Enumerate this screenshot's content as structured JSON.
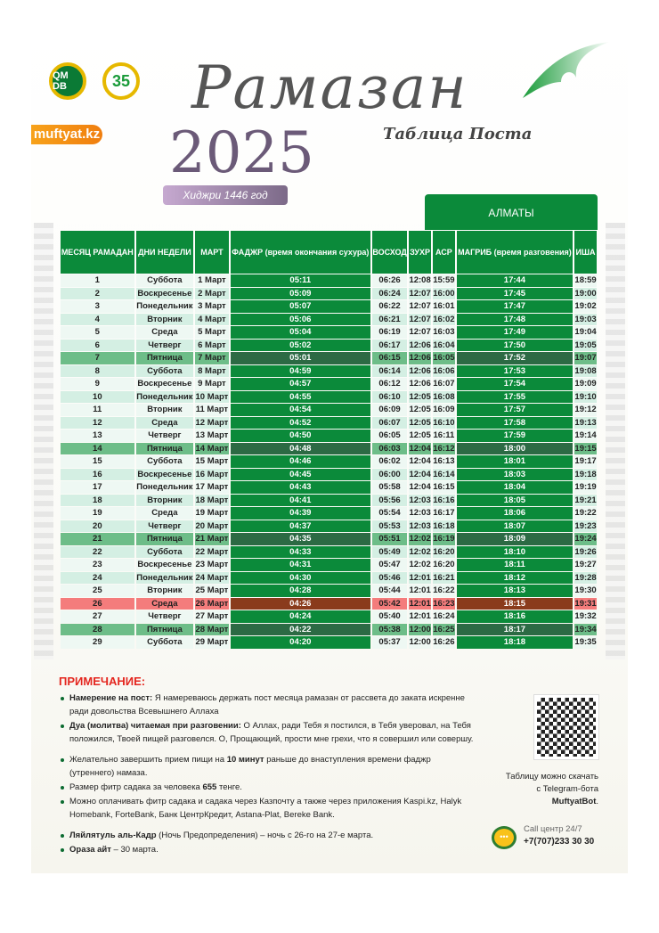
{
  "header": {
    "logo1_text": "QM DB",
    "logo2_text": "35",
    "site": "muftyat.kz",
    "title": "Рамазан",
    "year": "2025",
    "subtitle": "Таблица Поста",
    "hijri": "Хиджри 1446 год",
    "city": "АЛМАТЫ"
  },
  "colors": {
    "green": "#0b8a3a",
    "friday_row": "#6dbd88",
    "special_row": "#f47c7c",
    "note_title": "#e4261f",
    "site_orange": "#f7a21b"
  },
  "table": {
    "columns": [
      "МЕСЯЦ РАМАДАН",
      "ДНИ НЕДЕЛИ",
      "МАРТ",
      "ФАДЖР (время окончания сухура)",
      "ВОСХОД",
      "ЗУХР",
      "АСР",
      "МАГРИБ (время разговения)",
      "ИША"
    ],
    "rows": [
      [
        "1",
        "Суббота",
        "1 Март",
        "05:11",
        "06:26",
        "12:08",
        "15:59",
        "17:44",
        "18:59"
      ],
      [
        "2",
        "Воскресенье",
        "2 Март",
        "05:09",
        "06:24",
        "12:07",
        "16:00",
        "17:45",
        "19:00"
      ],
      [
        "3",
        "Понедельник",
        "3 Март",
        "05:07",
        "06:22",
        "12:07",
        "16:01",
        "17:47",
        "19:02"
      ],
      [
        "4",
        "Вторник",
        "4 Март",
        "05:06",
        "06:21",
        "12:07",
        "16:02",
        "17:48",
        "19:03"
      ],
      [
        "5",
        "Среда",
        "5 Март",
        "05:04",
        "06:19",
        "12:07",
        "16:03",
        "17:49",
        "19:04"
      ],
      [
        "6",
        "Четверг",
        "6 Март",
        "05:02",
        "06:17",
        "12:06",
        "16:04",
        "17:50",
        "19:05"
      ],
      [
        "7",
        "Пятница",
        "7 Март",
        "05:01",
        "06:15",
        "12:06",
        "16:05",
        "17:52",
        "19:07"
      ],
      [
        "8",
        "Суббота",
        "8 Март",
        "04:59",
        "06:14",
        "12:06",
        "16:06",
        "17:53",
        "19:08"
      ],
      [
        "9",
        "Воскресенье",
        "9 Март",
        "04:57",
        "06:12",
        "12:06",
        "16:07",
        "17:54",
        "19:09"
      ],
      [
        "10",
        "Понедельник",
        "10 Март",
        "04:55",
        "06:10",
        "12:05",
        "16:08",
        "17:55",
        "19:10"
      ],
      [
        "11",
        "Вторник",
        "11 Март",
        "04:54",
        "06:09",
        "12:05",
        "16:09",
        "17:57",
        "19:12"
      ],
      [
        "12",
        "Среда",
        "12 Март",
        "04:52",
        "06:07",
        "12:05",
        "16:10",
        "17:58",
        "19:13"
      ],
      [
        "13",
        "Четверг",
        "13 Март",
        "04:50",
        "06:05",
        "12:05",
        "16:11",
        "17:59",
        "19:14"
      ],
      [
        "14",
        "Пятница",
        "14 Март",
        "04:48",
        "06:03",
        "12:04",
        "16:12",
        "18:00",
        "19:15"
      ],
      [
        "15",
        "Суббота",
        "15 Март",
        "04:46",
        "06:02",
        "12:04",
        "16:13",
        "18:01",
        "19:17"
      ],
      [
        "16",
        "Воскресенье",
        "16 Март",
        "04:45",
        "06:00",
        "12:04",
        "16:14",
        "18:03",
        "19:18"
      ],
      [
        "17",
        "Понедельник",
        "17 Март",
        "04:43",
        "05:58",
        "12:04",
        "16:15",
        "18:04",
        "19:19"
      ],
      [
        "18",
        "Вторник",
        "18 Март",
        "04:41",
        "05:56",
        "12:03",
        "16:16",
        "18:05",
        "19:21"
      ],
      [
        "19",
        "Среда",
        "19 Март",
        "04:39",
        "05:54",
        "12:03",
        "16:17",
        "18:06",
        "19:22"
      ],
      [
        "20",
        "Четверг",
        "20 Март",
        "04:37",
        "05:53",
        "12:03",
        "16:18",
        "18:07",
        "19:23"
      ],
      [
        "21",
        "Пятница",
        "21 Март",
        "04:35",
        "05:51",
        "12:02",
        "16:19",
        "18:09",
        "19:24"
      ],
      [
        "22",
        "Суббота",
        "22 Март",
        "04:33",
        "05:49",
        "12:02",
        "16:20",
        "18:10",
        "19:26"
      ],
      [
        "23",
        "Воскресенье",
        "23 Март",
        "04:31",
        "05:47",
        "12:02",
        "16:20",
        "18:11",
        "19:27"
      ],
      [
        "24",
        "Понедельник",
        "24 Март",
        "04:30",
        "05:46",
        "12:01",
        "16:21",
        "18:12",
        "19:28"
      ],
      [
        "25",
        "Вторник",
        "25 Март",
        "04:28",
        "05:44",
        "12:01",
        "16:22",
        "18:13",
        "19:30"
      ],
      [
        "26",
        "Среда",
        "26 Март",
        "04:26",
        "05:42",
        "12:01",
        "16:23",
        "18:15",
        "19:31"
      ],
      [
        "27",
        "Четверг",
        "27 Март",
        "04:24",
        "05:40",
        "12:01",
        "16:24",
        "18:16",
        "19:32"
      ],
      [
        "28",
        "Пятница",
        "28 Март",
        "04:22",
        "05:38",
        "12:00",
        "16:25",
        "18:17",
        "19:34"
      ],
      [
        "29",
        "Суббота",
        "29 Март",
        "04:20",
        "05:37",
        "12:00",
        "16:26",
        "18:18",
        "19:35"
      ]
    ],
    "highlight_rows": {
      "friday": [
        "7",
        "14",
        "21",
        "28"
      ],
      "special": [
        "26"
      ]
    }
  },
  "notes": {
    "title": "ПРИМЕЧАНИЕ:",
    "items": [
      {
        "bold": "Намерение на пост:",
        "text": " Я намереваюсь держать пост месяца рамазан от рассвета до заката искренне ради довольства Всевышнего Аллаха"
      },
      {
        "bold": "Дуа (молитва) читаемая при разговении:",
        "text": " О Аллах, ради Тебя я постился, в Тебя уверовал, на Тебя положился, Твоей пищей разговелся. О, Прощающий, прости мне грехи, что я совершил или совершу."
      },
      {
        "pre": "Желательно завершить прием пищи на ",
        "bold": "10 минут",
        "text": " раньше до внаступления времени фаджр (утреннего) намаза."
      },
      {
        "pre": "Размер фитр садака за человека ",
        "bold": "655",
        "text": " тенге."
      },
      {
        "text": "Можно оплачивать фитр садака и садака через Казпочту а также через приложения Kaspi.kz, Halyk Homebank, ForteBank, Банк ЦентрКредит, Astana-Plat, Bereke Bank."
      },
      {
        "bold": "Ляйлятуль аль-Кадр",
        "text": " (Ночь Предопределения) – ночь с 26-го на 27-е марта."
      },
      {
        "bold": "Ораза айт",
        "text": " – 30 марта."
      }
    ]
  },
  "qr": {
    "line1": "Таблицу можно скачать",
    "line2": "с Telegram-бота",
    "bot": "MuftyatBot",
    "dot": "."
  },
  "call": {
    "label": "Call центр 24/7",
    "phone": "+7(707)233 30 30"
  }
}
